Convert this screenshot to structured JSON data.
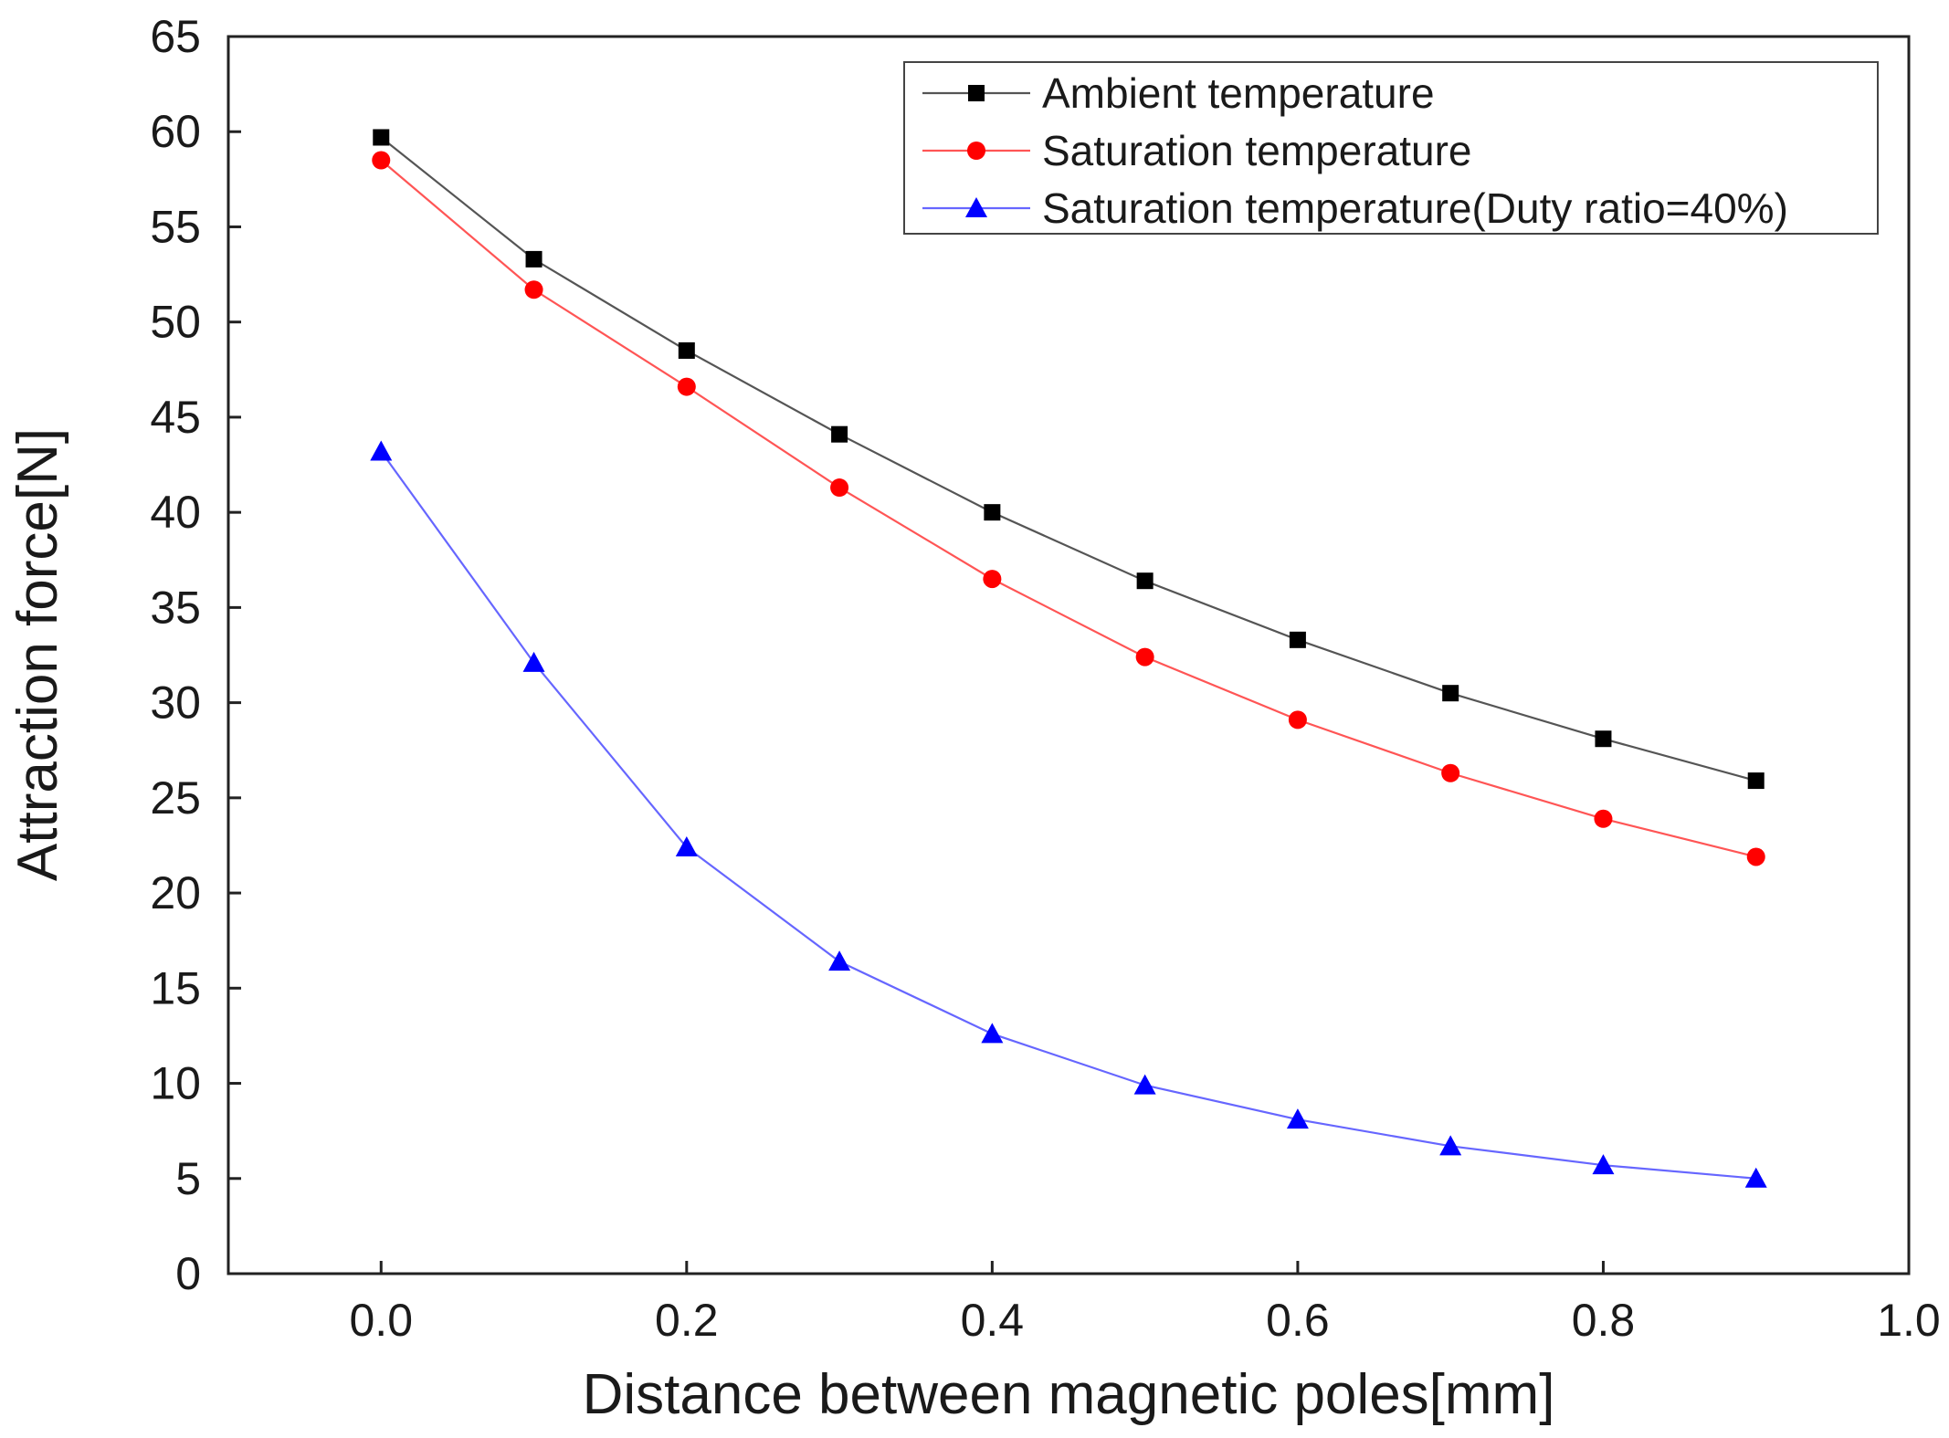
{
  "chart_data": {
    "type": "line",
    "title": "",
    "xlabel": "Distance between magnetic poles[mm]",
    "ylabel": "Attraction force[N]",
    "xlim": [
      -0.1,
      1.0
    ],
    "ylim": [
      0,
      65
    ],
    "xticks": [
      0.0,
      0.2,
      0.4,
      0.6,
      0.8,
      1.0
    ],
    "xtick_labels": [
      "0.0",
      "0.2",
      "0.4",
      "0.6",
      "0.8",
      "1.0"
    ],
    "yticks": [
      0,
      5,
      10,
      15,
      20,
      25,
      30,
      35,
      40,
      45,
      50,
      55,
      60,
      65
    ],
    "ytick_labels": [
      "0",
      "5",
      "10",
      "15",
      "20",
      "25",
      "30",
      "35",
      "40",
      "45",
      "50",
      "55",
      "60",
      "65"
    ],
    "grid": false,
    "legend_position": "top-right",
    "x": [
      0.0,
      0.1,
      0.2,
      0.3,
      0.4,
      0.5,
      0.6,
      0.7,
      0.8,
      0.9
    ],
    "series": [
      {
        "name": "Ambient temperature",
        "marker": "square",
        "color": "#000000",
        "line_color": "#555555",
        "values": [
          59.7,
          53.3,
          48.5,
          44.1,
          40.0,
          36.4,
          33.3,
          30.5,
          28.1,
          25.9
        ]
      },
      {
        "name": "Saturation temperature",
        "marker": "circle",
        "color": "#ff0000",
        "line_color": "#ff5555",
        "values": [
          58.5,
          51.7,
          46.6,
          41.3,
          36.5,
          32.4,
          29.1,
          26.3,
          23.9,
          21.9
        ]
      },
      {
        "name": "Saturation temperature(Duty ratio=40%)",
        "marker": "triangle",
        "color": "#0000ff",
        "line_color": "#6666ff",
        "values": [
          43.2,
          32.1,
          22.4,
          16.4,
          12.6,
          9.9,
          8.1,
          6.7,
          5.7,
          5.0
        ]
      }
    ]
  }
}
